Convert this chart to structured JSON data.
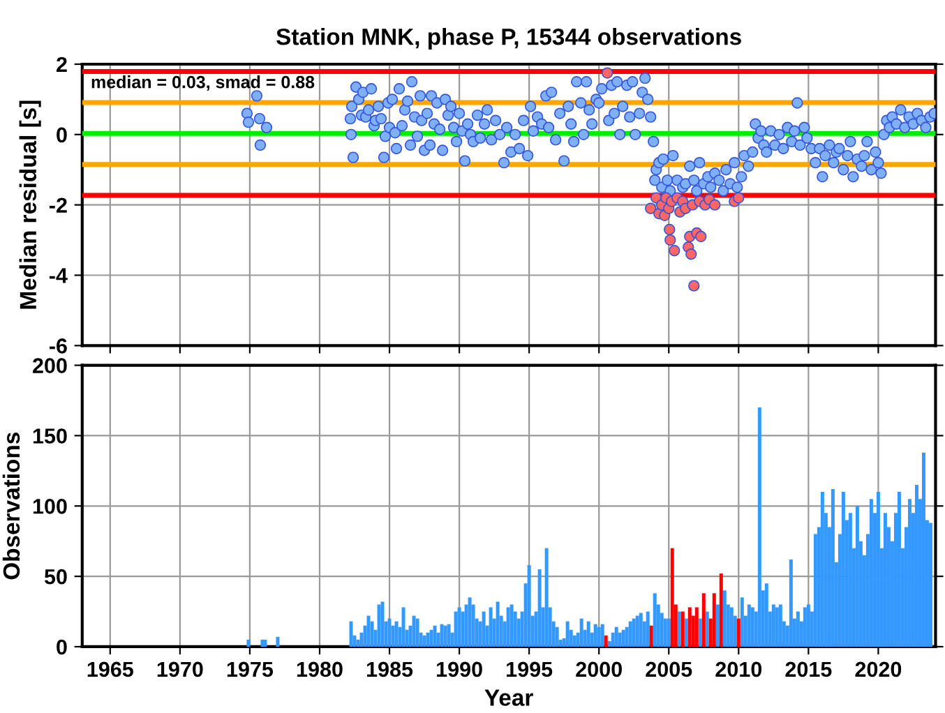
{
  "chart_data": [
    {
      "type": "scatter",
      "title": "Station MNK, phase P, 15344 observations",
      "ylabel": "Median residual [s]",
      "xlim": [
        1963,
        2024.1
      ],
      "xticks": [
        1965,
        1970,
        1975,
        1980,
        1985,
        1990,
        1995,
        2000,
        2005,
        2010,
        2015,
        2020
      ],
      "ylim": [
        -6,
        2
      ],
      "yticks": [
        -6,
        -4,
        -2,
        0,
        2
      ],
      "tick_labels": "y",
      "grid": true,
      "marker": "circle",
      "legend": false,
      "annotations": [
        "median = 0.03, smad = 0.88"
      ],
      "ref_lines": [
        {
          "axis": "y",
          "value": 0.03,
          "color": "#00ee00"
        },
        {
          "axis": "y",
          "value": 0.91,
          "color": "#ffa500"
        },
        {
          "axis": "y",
          "value": -0.85,
          "color": "#ffa500"
        },
        {
          "axis": "y",
          "value": 1.79,
          "color": "#ff0000"
        },
        {
          "axis": "y",
          "value": -1.73,
          "color": "#ff0000"
        }
      ],
      "series": [
        {
          "color": "#7fb0f5",
          "x": [
            1974.8,
            1974.9,
            1975.5,
            1975.7,
            1975.75,
            1976.2,
            1982.2,
            1982.25,
            1982.4,
            1982.3,
            1982.6,
            1982.8,
            1983.0,
            1983.1,
            1983.3,
            1983.5,
            1983.7,
            1983.9,
            1984.0,
            1984.2,
            1984.4,
            1984.6,
            1984.7,
            1984.9,
            1985.0,
            1985.2,
            1985.4,
            1985.5,
            1985.7,
            1985.9,
            1986.1,
            1986.3,
            1986.5,
            1986.6,
            1986.8,
            1987.0,
            1987.2,
            1987.3,
            1987.5,
            1987.7,
            1987.9,
            1988.0,
            1988.2,
            1988.4,
            1988.6,
            1988.8,
            1989.0,
            1989.2,
            1989.4,
            1989.6,
            1989.8,
            1990.0,
            1990.2,
            1990.4,
            1990.6,
            1990.8,
            1991.0,
            1991.3,
            1991.5,
            1991.8,
            1992.0,
            1992.3,
            1992.6,
            1992.9,
            1993.2,
            1993.4,
            1993.7,
            1994.0,
            1994.3,
            1994.6,
            1994.9,
            1995.1,
            1995.3,
            1995.6,
            1995.9,
            1996.2,
            1996.4,
            1996.6,
            1996.9,
            1997.2,
            1997.5,
            1997.8,
            1998.0,
            1998.2,
            1998.4,
            1998.7,
            1998.9,
            1999.1,
            1999.3,
            1999.5,
            1999.8,
            2000.0,
            2000.2,
            2000.7,
            2000.9,
            2001.1,
            2001.3,
            2001.5,
            2001.7,
            2002.0,
            2002.2,
            2002.4,
            2002.6,
            2002.9,
            2003.1,
            2003.3,
            2003.5,
            2003.7,
            2003.9,
            2004.0,
            2004.1,
            2004.3,
            2004.5,
            2004.6,
            2004.9,
            2005.1,
            2005.3,
            2005.6,
            2006.0,
            2006.2,
            2006.5,
            2006.8,
            2007.0,
            2007.2,
            2007.5,
            2007.8,
            2008.0,
            2008.3,
            2008.6,
            2008.9,
            2009.1,
            2009.4,
            2009.7,
            2009.9,
            2010.2,
            2010.4,
            2010.7,
            2011.0,
            2011.2,
            2011.4,
            2011.6,
            2011.8,
            2012.0,
            2012.3,
            2012.6,
            2012.9,
            2013.2,
            2013.5,
            2013.8,
            2014.0,
            2014.2,
            2014.4,
            2014.7,
            2014.9,
            2015.2,
            2015.5,
            2015.8,
            2016.0,
            2016.2,
            2016.5,
            2016.8,
            2017.0,
            2017.2,
            2017.5,
            2017.8,
            2018.0,
            2018.2,
            2018.5,
            2018.8,
            2019.0,
            2019.2,
            2019.5,
            2019.8,
            2020.0,
            2020.2,
            2020.4,
            2020.6,
            2020.8,
            2021.0,
            2021.3,
            2021.6,
            2021.9,
            2022.2,
            2022.5,
            2022.8,
            2023.1,
            2023.4,
            2023.7,
            2024.0
          ],
          "values": [
            0.6,
            0.35,
            1.1,
            0.45,
            -0.3,
            0.2,
            0.45,
            0.0,
            -0.65,
            0.8,
            1.35,
            1.0,
            0.55,
            1.2,
            0.5,
            0.7,
            1.3,
            0.25,
            0.4,
            0.8,
            0.45,
            -0.65,
            -0.05,
            0.9,
            0.2,
            1.0,
            0.05,
            -0.4,
            1.3,
            0.25,
            0.7,
            0.95,
            -0.3,
            1.5,
            0.5,
            -0.05,
            1.1,
            0.4,
            -0.45,
            0.6,
            -0.3,
            1.1,
            0.3,
            0.9,
            0.15,
            -0.45,
            1.0,
            0.55,
            0.8,
            0.2,
            -0.2,
            0.6,
            0.1,
            -0.75,
            0.3,
            0.0,
            -0.2,
            0.55,
            -0.1,
            0.3,
            0.7,
            -0.15,
            0.4,
            0.0,
            -0.8,
            0.2,
            -0.5,
            0.0,
            -0.4,
            0.4,
            -0.6,
            0.8,
            0.1,
            0.5,
            0.3,
            1.1,
            0.2,
            1.2,
            -0.15,
            0.6,
            -0.75,
            0.8,
            0.3,
            -0.2,
            1.5,
            0.9,
            0.0,
            1.5,
            0.7,
            0.3,
            1.0,
            0.9,
            1.3,
            0.4,
            1.4,
            0.6,
            1.5,
            0.0,
            0.8,
            1.4,
            0.5,
            1.5,
            0.0,
            0.6,
            1.2,
            1.6,
            1.0,
            0.5,
            -0.2,
            -1.3,
            -1.0,
            -0.8,
            -1.5,
            -0.7,
            -1.3,
            -1.6,
            -0.6,
            -1.3,
            -1.5,
            -1.4,
            -0.9,
            -1.3,
            -1.6,
            -0.8,
            -1.4,
            -1.2,
            -1.5,
            -1.1,
            -1.3,
            -1.6,
            -1.0,
            -1.4,
            -0.8,
            -1.5,
            -1.2,
            -0.6,
            -0.9,
            -0.5,
            0.3,
            -0.1,
            0.1,
            -0.3,
            -0.5,
            0.1,
            -0.3,
            0.0,
            -0.4,
            0.2,
            -0.2,
            0.1,
            0.9,
            -0.3,
            0.2,
            -0.1,
            -0.4,
            -0.8,
            -0.4,
            -1.2,
            -0.6,
            -0.3,
            -0.8,
            -0.5,
            -0.4,
            -1.0,
            -0.6,
            -0.2,
            -1.2,
            -0.7,
            -0.9,
            -0.6,
            -0.2,
            -1.0,
            -0.5,
            -0.8,
            -1.1,
            0.0,
            0.4,
            0.2,
            0.5,
            0.3,
            0.7,
            0.2,
            0.5,
            0.3,
            0.6,
            0.4,
            0.2,
            0.5,
            0.6
          ]
        },
        {
          "color": "#ff6666",
          "x": [
            2000.6,
            2003.7,
            2004.1,
            2004.3,
            2004.5,
            2004.7,
            2004.8,
            2005.0,
            2005.05,
            2005.1,
            2005.2,
            2005.4,
            2005.6,
            2005.8,
            2006.0,
            2006.2,
            2006.4,
            2006.5,
            2006.6,
            2006.7,
            2006.8,
            2007.0,
            2007.2,
            2007.3,
            2007.6,
            2007.9,
            2008.3,
            2009.7,
            2010.0
          ],
          "values": [
            1.75,
            -2.1,
            -1.8,
            -2.25,
            -2.0,
            -2.3,
            -1.8,
            -2.1,
            -2.7,
            -3.0,
            -1.9,
            -3.3,
            -1.8,
            -2.2,
            -1.9,
            -2.1,
            -3.2,
            -2.9,
            -3.4,
            -2.0,
            -4.3,
            -2.8,
            -1.9,
            -2.9,
            -2.0,
            -1.85,
            -2.0,
            -1.9,
            -1.8
          ]
        }
      ]
    },
    {
      "type": "bar",
      "xlabel": "Year",
      "ylabel": "Observations",
      "xlim": [
        1963,
        2024.1
      ],
      "xticks": [
        1965,
        1970,
        1975,
        1980,
        1985,
        1990,
        1995,
        2000,
        2005,
        2010,
        2015,
        2020
      ],
      "ylim": [
        0,
        200
      ],
      "yticks": [
        0,
        50,
        100,
        150,
        200
      ],
      "grid": true,
      "legend": false,
      "series": [
        {
          "color": "#3399ff",
          "x": [
            1974.9,
            1975.9,
            1976.1,
            1977.0,
            1982.25,
            1982.5,
            1982.75,
            1983,
            1983.25,
            1983.5,
            1983.75,
            1984,
            1984.25,
            1984.5,
            1984.75,
            1985,
            1985.25,
            1985.5,
            1985.75,
            1986,
            1986.25,
            1986.5,
            1986.75,
            1987,
            1987.25,
            1987.5,
            1987.75,
            1988,
            1988.25,
            1988.5,
            1988.75,
            1989,
            1989.25,
            1989.5,
            1989.75,
            1990,
            1990.25,
            1990.5,
            1990.75,
            1991,
            1991.25,
            1991.5,
            1991.75,
            1992,
            1992.25,
            1992.5,
            1992.75,
            1993,
            1993.25,
            1993.5,
            1993.75,
            1994,
            1994.25,
            1994.5,
            1994.75,
            1995,
            1995.25,
            1995.5,
            1995.75,
            1996,
            1996.25,
            1996.5,
            1996.75,
            1997,
            1997.25,
            1997.5,
            1997.75,
            1998,
            1998.25,
            1998.5,
            1998.75,
            1999,
            1999.25,
            1999.5,
            1999.75,
            2000,
            2000.25,
            2000.75,
            2001,
            2001.25,
            2001.5,
            2001.75,
            2002,
            2002.25,
            2002.5,
            2002.75,
            2003,
            2003.25,
            2003.5,
            2004,
            2004.25,
            2004.5,
            2004.75,
            2005,
            2005.75,
            2006.25,
            2007.25,
            2007.75,
            2008.5,
            2009,
            2009.25,
            2009.5,
            2009.75,
            2010.25,
            2010.5,
            2010.75,
            2011,
            2011.25,
            2011.5,
            2011.75,
            2012,
            2012.25,
            2012.5,
            2012.75,
            2013,
            2013.25,
            2013.5,
            2013.75,
            2014,
            2014.25,
            2014.5,
            2014.75,
            2015,
            2015.25,
            2015.5,
            2015.75,
            2016,
            2016.25,
            2016.5,
            2016.75,
            2017,
            2017.25,
            2017.5,
            2017.75,
            2018,
            2018.25,
            2018.5,
            2018.75,
            2019,
            2019.25,
            2019.5,
            2019.75,
            2020,
            2020.25,
            2020.5,
            2020.75,
            2021,
            2021.25,
            2021.5,
            2021.75,
            2022,
            2022.25,
            2022.5,
            2022.75,
            2023,
            2023.25,
            2023.5,
            2023.75
          ],
          "values": [
            5,
            5,
            5,
            7,
            18,
            8,
            5,
            10,
            15,
            22,
            18,
            12,
            30,
            32,
            18,
            20,
            15,
            18,
            14,
            28,
            12,
            15,
            22,
            20,
            10,
            8,
            10,
            12,
            15,
            10,
            16,
            15,
            16,
            10,
            25,
            28,
            25,
            30,
            35,
            30,
            20,
            18,
            25,
            15,
            28,
            20,
            32,
            22,
            18,
            28,
            30,
            25,
            20,
            25,
            45,
            58,
            22,
            25,
            55,
            28,
            70,
            28,
            18,
            14,
            5,
            6,
            18,
            12,
            8,
            10,
            20,
            12,
            18,
            10,
            16,
            14,
            16,
            4,
            10,
            14,
            10,
            12,
            14,
            18,
            20,
            22,
            24,
            18,
            25,
            38,
            30,
            24,
            20,
            20,
            25,
            20,
            20,
            25,
            30,
            40,
            30,
            28,
            22,
            35,
            22,
            30,
            28,
            25,
            170,
            40,
            45,
            25,
            30,
            28,
            30,
            18,
            15,
            62,
            20,
            25,
            18,
            28,
            30,
            25,
            80,
            85,
            110,
            95,
            85,
            112,
            60,
            80,
            110,
            90,
            95,
            70,
            100,
            75,
            65,
            80,
            105,
            95,
            110,
            70,
            95,
            85,
            75,
            95,
            110,
            70,
            85,
            105,
            95,
            115,
            105,
            138,
            90,
            88
          ]
        },
        {
          "color": "#ff0000",
          "x": [
            2000.5,
            2003.75,
            2005.25,
            2005.5,
            2006,
            2006.5,
            2006.75,
            2007,
            2007.5,
            2008,
            2008.25,
            2008.75,
            2010
          ],
          "values": [
            8,
            15,
            70,
            30,
            25,
            28,
            22,
            28,
            38,
            20,
            38,
            52,
            20
          ]
        }
      ]
    }
  ]
}
